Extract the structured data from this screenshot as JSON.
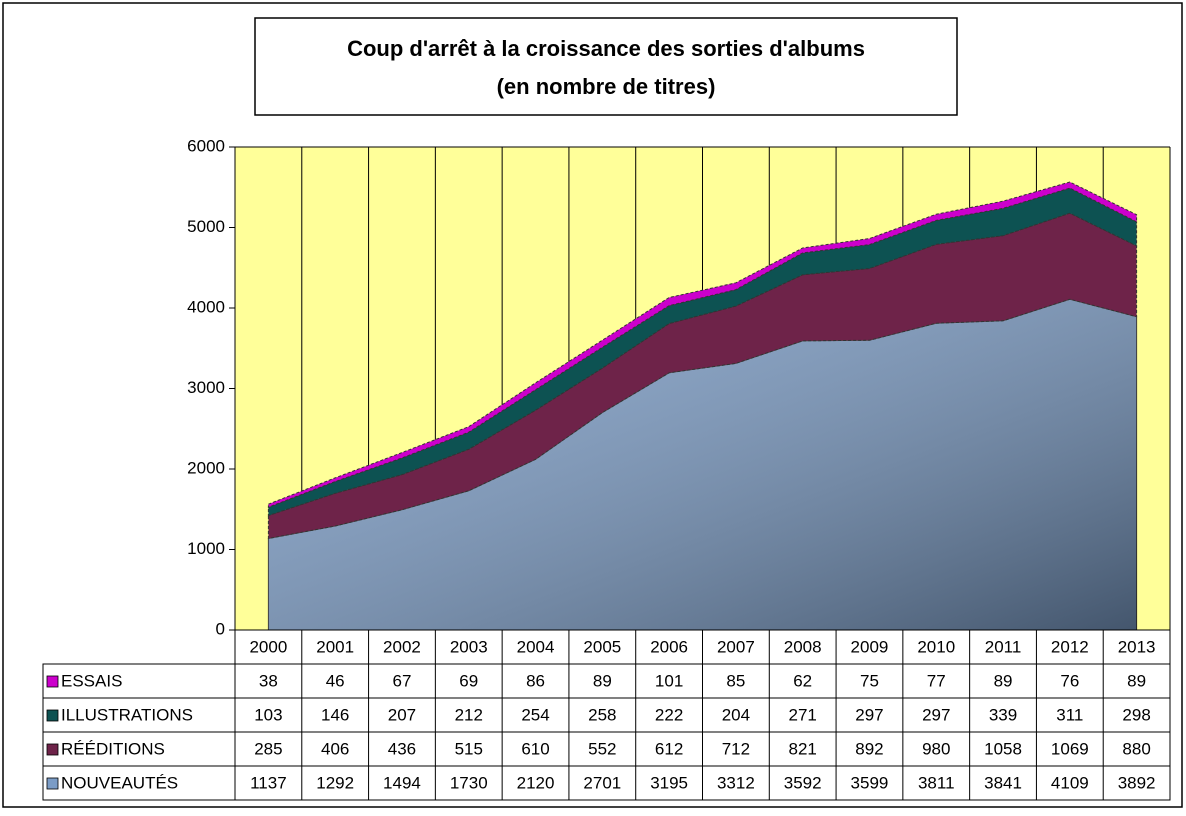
{
  "chart_data": {
    "type": "stacked_area",
    "title": [
      "Coup d'arrêt à la croissance des sorties d'albums",
      "(en nombre de titres)"
    ],
    "categories": [
      "2000",
      "2001",
      "2002",
      "2003",
      "2004",
      "2005",
      "2006",
      "2007",
      "2008",
      "2009",
      "2010",
      "2011",
      "2012",
      "2013"
    ],
    "series": [
      {
        "name": "NOUVEAUTÉS",
        "color": "#7b9cc6",
        "values": [
          1137,
          1292,
          1494,
          1730,
          2120,
          2701,
          3195,
          3312,
          3592,
          3599,
          3811,
          3841,
          4109,
          3892
        ]
      },
      {
        "name": "RÉÉDITIONS",
        "color": "#6e2349",
        "values": [
          285,
          406,
          436,
          515,
          610,
          552,
          612,
          712,
          821,
          892,
          980,
          1058,
          1069,
          880
        ]
      },
      {
        "name": "ILLUSTRATIONS",
        "color": "#0d5252",
        "values": [
          103,
          146,
          207,
          212,
          254,
          258,
          222,
          204,
          271,
          297,
          297,
          339,
          311,
          298
        ]
      },
      {
        "name": "ESSAIS",
        "color": "#cc00cc",
        "values": [
          38,
          46,
          67,
          69,
          86,
          89,
          101,
          85,
          62,
          75,
          77,
          89,
          76,
          89
        ]
      }
    ],
    "ylim": [
      0,
      6000
    ],
    "yticks": [
      0,
      1000,
      2000,
      3000,
      4000,
      5000,
      6000
    ],
    "background": "#ffff99"
  }
}
